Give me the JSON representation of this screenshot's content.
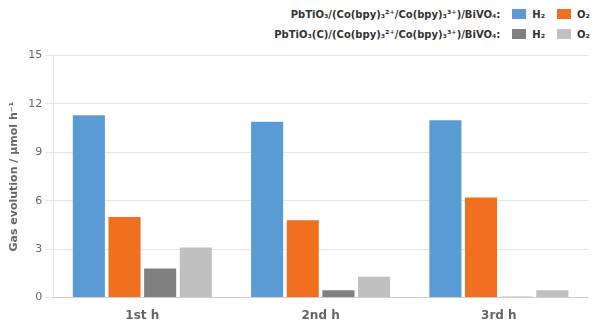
{
  "chart_data": {
    "type": "bar",
    "categories": [
      "1st h",
      "2nd h",
      "3rd h"
    ],
    "series": [
      {
        "name": "H₂",
        "color": "#5B9BD5",
        "values": [
          11.3,
          10.9,
          11.0
        ]
      },
      {
        "name": "O₂",
        "color": "#F07020",
        "values": [
          5.0,
          4.8,
          6.2
        ]
      },
      {
        "name": "H₂",
        "color": "#808080",
        "values": [
          1.8,
          0.45,
          0.05
        ]
      },
      {
        "name": "O₂",
        "color": "#C0C0C0",
        "values": [
          3.1,
          1.3,
          0.45
        ]
      }
    ],
    "ylabel": "Gas evolution / μmol h⁻¹",
    "ylim": [
      0,
      15
    ],
    "yticks": [
      0,
      3,
      6,
      9,
      12,
      15
    ],
    "grid": true,
    "legend": "top right",
    "annotations": [
      "PbTiO₃/(Co(bpy)₃²⁺/Co(bpy)₃³⁺)/BiVO₄:",
      "PbTiO₃(C)/(Co(bpy)₃²⁺/Co(bpy)₃³⁺)/BiVO₄:"
    ]
  }
}
